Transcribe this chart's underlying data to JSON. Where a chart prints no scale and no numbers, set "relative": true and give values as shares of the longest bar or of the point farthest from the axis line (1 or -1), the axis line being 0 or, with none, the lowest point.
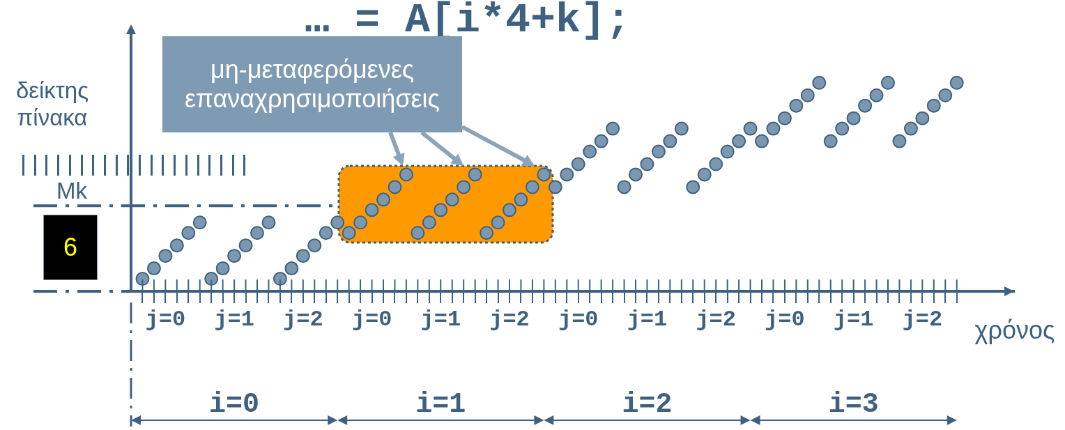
{
  "chart_data": {
    "type": "scatter",
    "title": "… = A[i*4+k];",
    "xlabel": "χρόνος",
    "ylabel": "δείκτης πίνακα",
    "relative": true,
    "marker": "circle",
    "color": "#7b98b0",
    "categories": [
      null,
      null,
      "j=0",
      null,
      null,
      null,
      null,
      null,
      "j=1",
      null,
      null,
      null,
      null,
      null,
      "j=2",
      null,
      null,
      null,
      null,
      null,
      "j=0",
      null,
      null,
      null,
      null,
      null,
      "j=1",
      null,
      null,
      null,
      null,
      null,
      "j=2",
      null,
      null,
      null,
      null,
      null,
      "j=0",
      null,
      null,
      null,
      null,
      null,
      "j=1",
      null,
      null,
      null,
      null,
      null,
      "j=2",
      null,
      null,
      null,
      null,
      null,
      "j=0",
      null,
      null,
      null,
      null,
      null,
      "j=1",
      null,
      null,
      null,
      null,
      null,
      "j=2",
      null,
      null,
      null
    ],
    "values": [
      0.06,
      0.11,
      0.17,
      0.22,
      0.28,
      0.33,
      0.06,
      0.11,
      0.17,
      0.22,
      0.28,
      0.33,
      0.06,
      0.11,
      0.17,
      0.22,
      0.28,
      0.33,
      0.28,
      0.33,
      0.39,
      0.44,
      0.5,
      0.56,
      0.28,
      0.33,
      0.39,
      0.44,
      0.5,
      0.56,
      0.28,
      0.33,
      0.39,
      0.44,
      0.5,
      0.56,
      0.5,
      0.56,
      0.61,
      0.67,
      0.72,
      0.78,
      0.5,
      0.56,
      0.61,
      0.67,
      0.72,
      0.78,
      0.5,
      0.56,
      0.61,
      0.67,
      0.72,
      0.78,
      0.72,
      0.78,
      0.83,
      0.89,
      0.94,
      1,
      0.72,
      0.78,
      0.83,
      0.89,
      0.94,
      1,
      0.72,
      0.78,
      0.83,
      0.89,
      0.94,
      1
    ],
    "ref_lines": [
      {
        "axis": "y",
        "value": 0.41,
        "label": "Mk",
        "line_style": "dashed"
      },
      {
        "axis": "y",
        "value": 0,
        "line_style": "dashed"
      }
    ],
    "annotations": [
      "6",
      "i=0",
      "i=1",
      "i=2",
      "i=3",
      "μη-μεταφερόμενες επαναχρησιμοποιήσεις"
    ]
  }
}
